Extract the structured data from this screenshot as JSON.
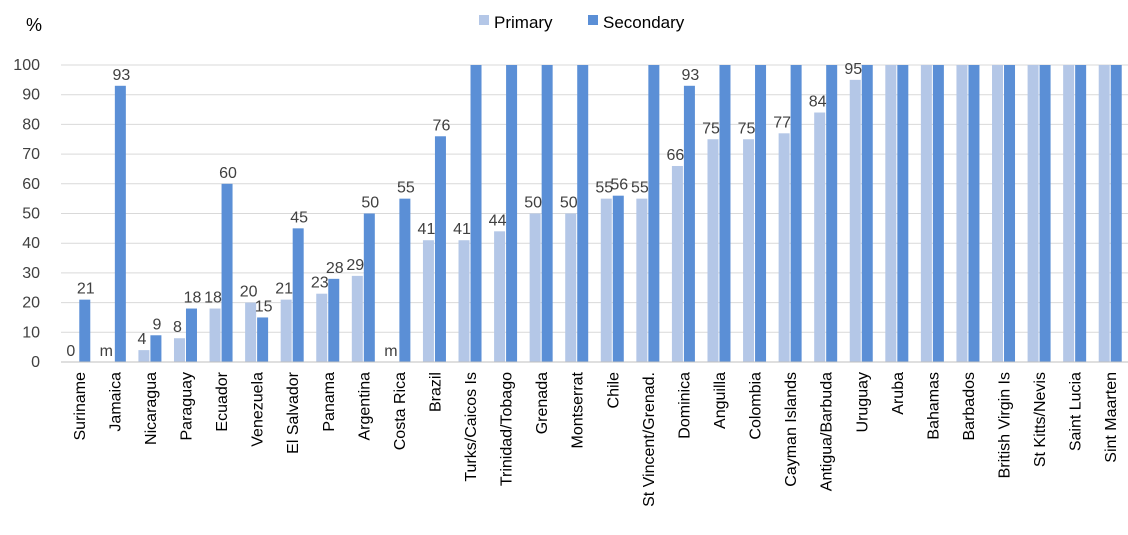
{
  "chart_data": {
    "type": "bar",
    "ylabel": "%",
    "ylim": [
      0,
      100
    ],
    "yticks": [
      0,
      10,
      20,
      30,
      40,
      50,
      60,
      70,
      80,
      90,
      100
    ],
    "grid": true,
    "legend_position": "top-center",
    "categories": [
      "Suriname",
      "Jamaica",
      "Nicaragua",
      "Paraguay",
      "Ecuador",
      "Venezuela",
      "El Salvador",
      "Panama",
      "Argentina",
      "Costa Rica",
      "Brazil",
      "Turks/Caicos Is",
      "Trinidad/Tobago",
      "Grenada",
      "Montserrat",
      "Chile",
      "St Vincent/Grenad.",
      "Dominica",
      "Anguilla",
      "Colombia",
      "Cayman Islands",
      "Antigua/Barbuda",
      "Uruguay",
      "Aruba",
      "Bahamas",
      "Barbados",
      "British Virgin Is",
      "St Kitts/Nevis",
      "Saint Lucia",
      "Sint Maarten"
    ],
    "series": [
      {
        "name": "Primary",
        "color": "#b4c7e7",
        "values": [
          0,
          null,
          4,
          8,
          18,
          20,
          21,
          23,
          29,
          null,
          41,
          41,
          44,
          50,
          50,
          55,
          55,
          66,
          75,
          75,
          77,
          84,
          95,
          100,
          100,
          100,
          100,
          100,
          100,
          100
        ],
        "labels": [
          "0",
          "m",
          "4",
          "8",
          "18",
          "20",
          "21",
          "23",
          "29",
          "m",
          "41",
          "41",
          "44",
          "50",
          "50",
          "55",
          "55",
          "66",
          "75",
          "75",
          "77",
          "84",
          "95",
          "",
          "",
          "",
          "",
          "",
          "",
          ""
        ]
      },
      {
        "name": "Secondary",
        "color": "#5b8fd6",
        "values": [
          21,
          93,
          9,
          18,
          null,
          15,
          45,
          28,
          50,
          55,
          76,
          100,
          100,
          100,
          100,
          56,
          100,
          93,
          100,
          100,
          100,
          100,
          100,
          100,
          100,
          100,
          100,
          100,
          100,
          100
        ],
        "labels": [
          "21",
          "93",
          "9",
          "18",
          "60",
          "15",
          "45",
          "28",
          "50",
          "55",
          "76",
          "",
          "",
          "",
          "",
          "56",
          "",
          "93",
          "",
          "",
          "",
          "",
          "",
          "",
          "",
          "",
          "",
          "",
          "",
          ""
        ]
      }
    ]
  },
  "ecuador_secondary_value": 60
}
